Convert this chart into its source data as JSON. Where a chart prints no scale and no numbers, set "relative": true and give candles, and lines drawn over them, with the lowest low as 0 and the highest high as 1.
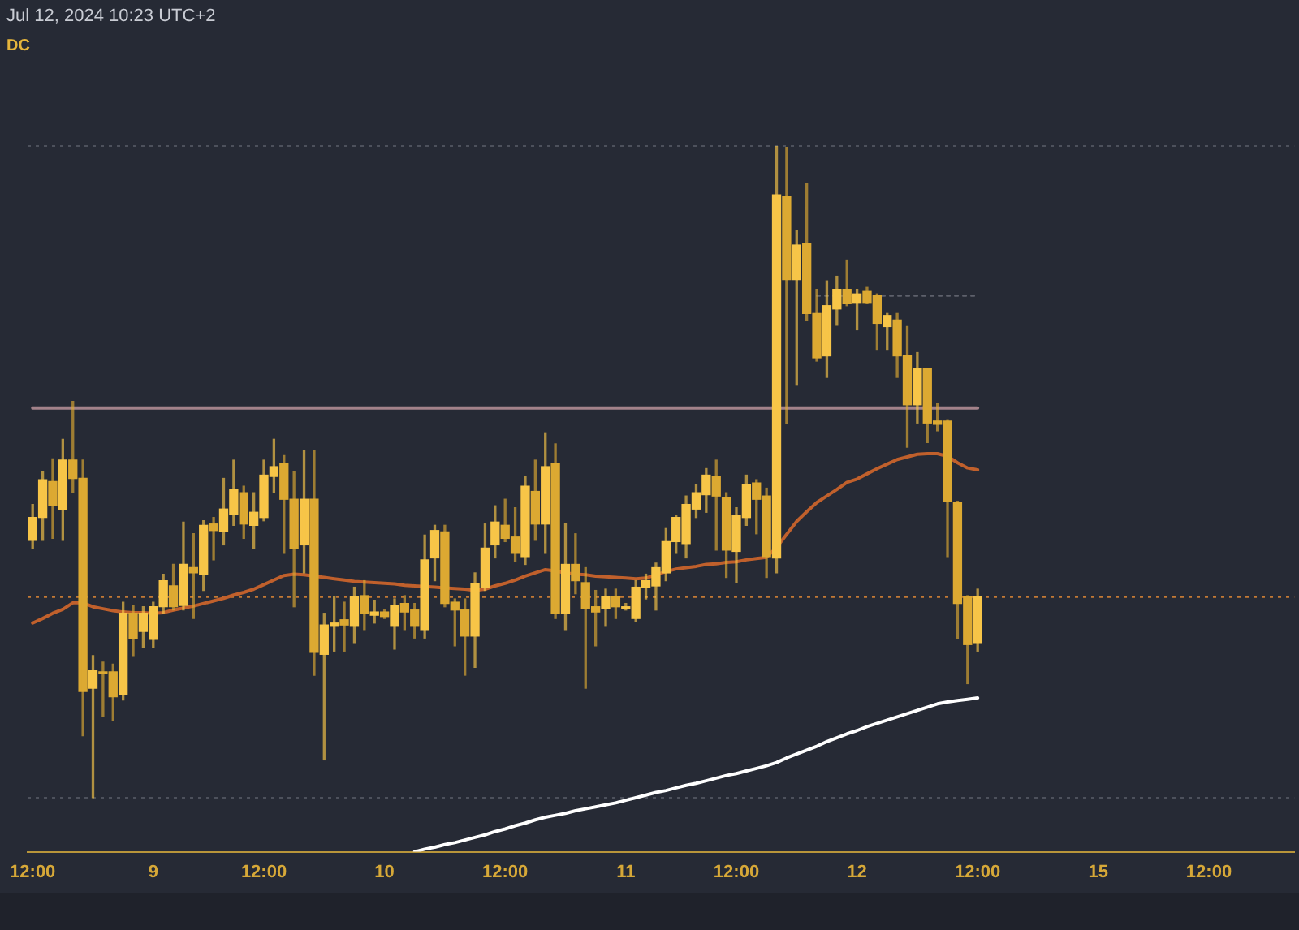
{
  "chart_data": {
    "type": "candlestick",
    "title": "DC",
    "annotations": [
      "Jul 12, 2024 10:23 UTC+2"
    ],
    "relative": true,
    "categories": [
      "12:00",
      null,
      null,
      null,
      null,
      null,
      null,
      null,
      null,
      null,
      null,
      null,
      "9",
      null,
      null,
      null,
      null,
      null,
      null,
      null,
      null,
      null,
      null,
      "12:00",
      null,
      null,
      null,
      null,
      null,
      null,
      null,
      null,
      null,
      null,
      null,
      "10",
      null,
      null,
      null,
      null,
      null,
      null,
      null,
      null,
      null,
      null,
      null,
      "12:00",
      null,
      null,
      null,
      null,
      null,
      null,
      null,
      null,
      null,
      null,
      null,
      "11",
      null,
      null,
      null,
      null,
      null,
      null,
      null,
      null,
      null,
      null,
      "12:00",
      null,
      null,
      null,
      null,
      null,
      null,
      null,
      null,
      null,
      null,
      null,
      "12",
      null,
      null,
      null,
      null,
      null,
      null,
      null,
      null,
      null,
      null,
      null,
      "12:00",
      null,
      null,
      null,
      null,
      null,
      null,
      null,
      null,
      null,
      null,
      null,
      "15",
      null,
      null,
      null,
      null,
      null,
      null,
      null,
      null,
      null,
      null,
      "12:00",
      null,
      null,
      null,
      null,
      null,
      null,
      null,
      null
    ],
    "series": [
      {
        "colors": [
          "#f7c548",
          "#f7c548",
          "#dca932",
          "#f7c548",
          "#dca932",
          "#dca932",
          "#f7c548",
          "#dca932",
          "#dca932",
          "#f7c548",
          "#dca932",
          "#f7c548",
          "#f7c548",
          "#f7c548",
          "#dca932",
          "#f7c548",
          "#dca932",
          "#f7c548",
          "#dca932",
          "#f7c548",
          "#f7c548",
          "#dca932",
          "#f7c548",
          "#f7c548",
          "#f7c548",
          "#dca932",
          "#dca932",
          "#f7c548",
          "#dca932",
          "#f7c548",
          "#f7c548",
          "#dca932",
          "#f7c548",
          "#dca932",
          "#f7c548",
          "#dca932",
          "#f7c548",
          "#dca932",
          "#dca932",
          "#f7c548",
          "#f7c548",
          "#dca932",
          "#dca932",
          "#dca932",
          "#f7c548",
          "#f7c548",
          "#f7c548",
          "#dca932",
          "#dca932",
          "#f7c548",
          "#dca932",
          "#f7c548",
          "#dca932",
          "#f7c548",
          "#dca932",
          "#dca932",
          "#dca932",
          "#f7c548",
          "#dca932",
          "#f7c548",
          "#f7c548",
          "#f7c548",
          "#f7c548",
          "#f7c548",
          "#f7c548",
          "#f7c548",
          "#f7c548",
          "#f7c548",
          "#dca932",
          "#dca932",
          "#f7c548",
          "#f7c548",
          "#dca932",
          "#dca932",
          "#f7c548",
          "#dca932",
          "#f7c548",
          "#dca932",
          "#dca932",
          "#f7c548",
          "#f7c548",
          "#dca932",
          "#f7c548",
          "#dca932",
          "#dca932",
          "#f7c548",
          "#dca932",
          "#dca932",
          "#f7c548",
          "#dca932",
          "#dca932",
          "#dca932",
          "#dca932",
          "#dca932",
          "#f7c548",
          null,
          null,
          null,
          null,
          null,
          null,
          null,
          null,
          null,
          null,
          null,
          null,
          null,
          null,
          null,
          null,
          null,
          null,
          null,
          null,
          null,
          null,
          null,
          null,
          null,
          null,
          null,
          null,
          null,
          null,
          null
        ],
        "ohlc": [
          [
            0.395,
            0.45,
            0.383,
            0.43
          ],
          [
            0.43,
            0.5,
            0.395,
            0.488
          ],
          [
            0.485,
            0.52,
            0.398,
            0.448
          ],
          [
            0.443,
            0.55,
            0.395,
            0.518
          ],
          [
            0.518,
            0.608,
            0.468,
            0.49
          ],
          [
            0.49,
            0.518,
            0.095,
            0.163
          ],
          [
            0.168,
            0.218,
            0,
            0.195
          ],
          [
            0.193,
            0.208,
            0.125,
            0.19
          ],
          [
            0.193,
            0.205,
            0.118,
            0.155
          ],
          [
            0.158,
            0.3,
            0.15,
            0.283
          ],
          [
            0.283,
            0.295,
            0.218,
            0.245
          ],
          [
            0.255,
            0.293,
            0.23,
            0.283
          ],
          [
            0.243,
            0.3,
            0.23,
            0.293
          ],
          [
            0.293,
            0.343,
            0.283,
            0.333
          ],
          [
            0.325,
            0.358,
            0.288,
            0.293
          ],
          [
            0.295,
            0.423,
            0.288,
            0.358
          ],
          [
            0.353,
            0.405,
            0.275,
            0.345
          ],
          [
            0.343,
            0.425,
            0.318,
            0.418
          ],
          [
            0.42,
            0.43,
            0.365,
            0.41
          ],
          [
            0.408,
            0.49,
            0.388,
            0.443
          ],
          [
            0.435,
            0.518,
            0.418,
            0.473
          ],
          [
            0.468,
            0.478,
            0.398,
            0.42
          ],
          [
            0.418,
            0.468,
            0.383,
            0.438
          ],
          [
            0.43,
            0.518,
            0.425,
            0.495
          ],
          [
            0.493,
            0.55,
            0.468,
            0.508
          ],
          [
            0.513,
            0.525,
            0.375,
            0.458
          ],
          [
            0.458,
            0.5,
            0.293,
            0.383
          ],
          [
            0.388,
            0.533,
            0.345,
            0.458
          ],
          [
            0.458,
            0.533,
            0.188,
            0.223
          ],
          [
            0.22,
            0.283,
            0.058,
            0.265
          ],
          [
            0.263,
            0.308,
            0.225,
            0.268
          ],
          [
            0.273,
            0.3,
            0.225,
            0.265
          ],
          [
            0.263,
            0.323,
            0.238,
            0.308
          ],
          [
            0.31,
            0.333,
            0.258,
            0.283
          ],
          [
            0.28,
            0.303,
            0.268,
            0.285
          ],
          [
            0.285,
            0.288,
            0.275,
            0.278
          ],
          [
            0.263,
            0.305,
            0.228,
            0.295
          ],
          [
            0.298,
            0.31,
            0.258,
            0.285
          ],
          [
            0.288,
            0.298,
            0.245,
            0.263
          ],
          [
            0.258,
            0.403,
            0.245,
            0.365
          ],
          [
            0.368,
            0.418,
            0.333,
            0.41
          ],
          [
            0.408,
            0.418,
            0.293,
            0.298
          ],
          [
            0.3,
            0.305,
            0.233,
            0.288
          ],
          [
            0.288,
            0.305,
            0.188,
            0.248
          ],
          [
            0.248,
            0.345,
            0.2,
            0.328
          ],
          [
            0.323,
            0.42,
            0.318,
            0.383
          ],
          [
            0.388,
            0.448,
            0.368,
            0.423
          ],
          [
            0.418,
            0.458,
            0.393,
            0.398
          ],
          [
            0.4,
            0.445,
            0.363,
            0.375
          ],
          [
            0.37,
            0.493,
            0.358,
            0.478
          ],
          [
            0.47,
            0.518,
            0.395,
            0.42
          ],
          [
            0.42,
            0.56,
            0.375,
            0.508
          ],
          [
            0.513,
            0.543,
            0.275,
            0.283
          ],
          [
            0.283,
            0.42,
            0.258,
            0.358
          ],
          [
            0.358,
            0.405,
            0.313,
            0.333
          ],
          [
            0.33,
            0.353,
            0.168,
            0.29
          ],
          [
            0.293,
            0.318,
            0.233,
            0.285
          ],
          [
            0.29,
            0.32,
            0.263,
            0.308
          ],
          [
            0.308,
            0.32,
            0.275,
            0.293
          ],
          [
            0.293,
            0.298,
            0.288,
            0.293
          ],
          [
            0.275,
            0.333,
            0.27,
            0.323
          ],
          [
            0.323,
            0.343,
            0.305,
            0.333
          ],
          [
            0.325,
            0.36,
            0.288,
            0.353
          ],
          [
            0.345,
            0.413,
            0.333,
            0.393
          ],
          [
            0.393,
            0.433,
            0.375,
            0.43
          ],
          [
            0.39,
            0.463,
            0.368,
            0.45
          ],
          [
            0.443,
            0.48,
            0.43,
            0.468
          ],
          [
            0.465,
            0.505,
            0.438,
            0.495
          ],
          [
            0.493,
            0.518,
            0.38,
            0.463
          ],
          [
            0.46,
            0.468,
            0.338,
            0.38
          ],
          [
            0.378,
            0.445,
            0.33,
            0.433
          ],
          [
            0.43,
            0.495,
            0.418,
            0.48
          ],
          [
            0.483,
            0.488,
            0.405,
            0.458
          ],
          [
            0.463,
            0.475,
            0.338,
            0.37
          ],
          [
            0.368,
            1,
            0.345,
            0.925
          ],
          [
            0.923,
            0.998,
            0.575,
            0.795
          ],
          [
            0.795,
            0.87,
            0.633,
            0.848
          ],
          [
            0.85,
            0.943,
            0.733,
            0.743
          ],
          [
            0.743,
            0.78,
            0.67,
            0.675
          ],
          [
            0.678,
            0.793,
            0.645,
            0.755
          ],
          [
            0.75,
            0.8,
            0.725,
            0.78
          ],
          [
            0.78,
            0.825,
            0.755,
            0.758
          ],
          [
            0.76,
            0.78,
            0.718,
            0.773
          ],
          [
            0.778,
            0.783,
            0.758,
            0.76
          ],
          [
            0.77,
            0.773,
            0.688,
            0.728
          ],
          [
            0.723,
            0.743,
            0.688,
            0.74
          ],
          [
            0.733,
            0.743,
            0.645,
            0.678
          ],
          [
            0.678,
            0.723,
            0.538,
            0.603
          ],
          [
            0.603,
            0.683,
            0.575,
            0.658
          ],
          [
            0.658,
            0.658,
            0.545,
            0.575
          ],
          [
            0.578,
            0.605,
            0.563,
            0.573
          ],
          [
            0.578,
            0.58,
            0.37,
            0.455
          ],
          [
            0.453,
            0.455,
            0.245,
            0.298
          ],
          [
            0.308,
            0.31,
            0.175,
            0.235
          ],
          [
            0.238,
            0.32,
            0.225,
            0.308
          ],
          null,
          null,
          null,
          null,
          null,
          null,
          null,
          null,
          null,
          null,
          null,
          null,
          null,
          null,
          null,
          null,
          null,
          null,
          null,
          null,
          null,
          null,
          null,
          null,
          null,
          null,
          null,
          null,
          null,
          null,
          null
        ]
      },
      {
        "type": "line",
        "color": "#c0602c",
        "values": [
          0.268,
          0.275,
          0.283,
          0.289,
          0.299,
          0.299,
          0.293,
          0.29,
          0.287,
          0.285,
          0.284,
          0.284,
          0.283,
          0.284,
          0.288,
          0.291,
          0.294,
          0.298,
          0.302,
          0.306,
          0.311,
          0.315,
          0.32,
          0.327,
          0.334,
          0.341,
          0.343,
          0.342,
          0.34,
          0.338,
          0.336,
          0.334,
          0.332,
          0.331,
          0.33,
          0.329,
          0.328,
          0.326,
          0.325,
          0.324,
          0.323,
          0.322,
          0.321,
          0.32,
          0.318,
          0.32,
          0.325,
          0.329,
          0.334,
          0.34,
          0.345,
          0.35,
          0.348,
          0.345,
          0.343,
          0.342,
          0.34,
          0.339,
          0.338,
          0.337,
          0.336,
          0.337,
          0.342,
          0.347,
          0.351,
          0.353,
          0.355,
          0.358,
          0.359,
          0.361,
          0.362,
          0.365,
          0.367,
          0.369,
          0.384,
          0.404,
          0.424,
          0.439,
          0.453,
          0.463,
          0.473,
          0.484,
          0.489,
          0.497,
          0.505,
          0.512,
          0.519,
          0.523,
          0.527,
          0.528,
          0.528,
          0.524,
          0.514,
          0.506,
          0.503,
          null,
          null,
          null,
          null,
          null,
          null,
          null,
          null,
          null,
          null,
          null,
          null,
          null,
          null,
          null,
          null,
          null,
          null,
          null,
          null,
          null,
          null,
          null,
          null,
          null,
          null,
          null,
          null,
          null,
          null,
          null
        ]
      },
      {
        "type": "line",
        "color": "#ffffff",
        "values": [
          null,
          null,
          null,
          null,
          null,
          null,
          null,
          null,
          null,
          null,
          null,
          null,
          null,
          null,
          null,
          null,
          null,
          null,
          null,
          null,
          null,
          null,
          null,
          null,
          null,
          null,
          null,
          null,
          null,
          null,
          null,
          null,
          null,
          null,
          null,
          null,
          null,
          null,
          -0.083,
          -0.079,
          -0.076,
          -0.072,
          -0.069,
          -0.065,
          -0.061,
          -0.057,
          -0.052,
          -0.048,
          -0.043,
          -0.039,
          -0.034,
          -0.03,
          -0.027,
          -0.024,
          -0.02,
          -0.017,
          -0.014,
          -0.011,
          -0.008,
          -0.004,
          0,
          0.004,
          0.008,
          0.011,
          0.015,
          0.019,
          0.022,
          0.026,
          0.03,
          0.034,
          0.037,
          0.041,
          0.045,
          0.049,
          0.054,
          0.061,
          0.067,
          0.073,
          0.079,
          0.086,
          0.092,
          0.098,
          0.103,
          0.109,
          0.114,
          0.119,
          0.124,
          0.129,
          0.134,
          0.139,
          0.144,
          0.147,
          0.149,
          0.151,
          0.153,
          null,
          null,
          null,
          null,
          null,
          null,
          null,
          null,
          null,
          null,
          null,
          null,
          null,
          null,
          null,
          null,
          null,
          null,
          null,
          null,
          null,
          null,
          null,
          null,
          null,
          null,
          null,
          null,
          null,
          null,
          null
        ]
      },
      {
        "type": "line",
        "color": "#a3828a",
        "values": [
          0.598,
          0.598,
          0.598,
          0.598,
          0.598,
          0.598,
          0.598,
          0.598,
          0.598,
          0.598,
          0.598,
          0.598,
          0.598,
          0.598,
          0.598,
          0.598,
          0.598,
          0.598,
          0.598,
          0.598,
          0.598,
          0.598,
          0.598,
          0.598,
          0.598,
          0.598,
          0.598,
          0.598,
          0.598,
          0.598,
          0.598,
          0.598,
          0.598,
          0.598,
          0.598,
          0.598,
          0.598,
          0.598,
          0.598,
          0.598,
          0.598,
          0.598,
          0.598,
          0.598,
          0.598,
          0.598,
          0.598,
          0.598,
          0.598,
          0.598,
          0.598,
          0.598,
          0.598,
          0.598,
          0.598,
          0.598,
          0.598,
          0.598,
          0.598,
          0.598,
          0.598,
          0.598,
          0.598,
          0.598,
          0.598,
          0.598,
          0.598,
          0.598,
          0.598,
          0.598,
          0.598,
          0.598,
          0.598,
          0.598,
          0.598,
          0.598,
          0.598,
          0.598,
          0.598,
          0.598,
          0.598,
          0.598,
          0.598,
          0.598,
          0.598,
          0.598,
          0.598,
          0.598,
          0.598,
          0.598,
          0.598,
          0.598,
          0.598,
          0.598,
          0.598,
          null,
          null,
          null,
          null,
          null,
          null,
          null,
          null,
          null,
          null,
          null,
          null,
          null,
          null,
          null,
          null,
          null,
          null,
          null,
          null,
          null,
          null,
          null,
          null,
          null,
          null,
          null,
          null,
          null,
          null,
          null
        ]
      },
      {
        "type": "line",
        "color": "#5d606b",
        "line_style": "dotted",
        "values": [
          null,
          null,
          null,
          null,
          null,
          null,
          null,
          null,
          null,
          null,
          null,
          null,
          null,
          null,
          null,
          null,
          null,
          null,
          null,
          null,
          null,
          null,
          null,
          null,
          null,
          null,
          null,
          null,
          null,
          null,
          null,
          null,
          null,
          null,
          null,
          null,
          null,
          null,
          null,
          null,
          null,
          null,
          null,
          null,
          null,
          null,
          null,
          null,
          null,
          null,
          null,
          null,
          null,
          null,
          null,
          null,
          null,
          null,
          null,
          null,
          null,
          null,
          null,
          null,
          null,
          null,
          null,
          null,
          null,
          null,
          null,
          null,
          null,
          null,
          null,
          null,
          null,
          null,
          0.77,
          0.77,
          0.77,
          0.77,
          0.77,
          0.77,
          0.77,
          0.77,
          0.77,
          0.77,
          0.77,
          0.77,
          0.77,
          0.77,
          0.77,
          0.77,
          0.77,
          null,
          null,
          null,
          null,
          null,
          null,
          null,
          null,
          null,
          null,
          null,
          null,
          null,
          null,
          null,
          null,
          null,
          null,
          null,
          null,
          null,
          null,
          null,
          null,
          null,
          null,
          null,
          null,
          null,
          null,
          null
        ]
      }
    ],
    "ref_lines": [
      {
        "axis": "y",
        "value": 1,
        "color": "#4d515c",
        "line_style": "dotted"
      },
      {
        "axis": "y",
        "value": 0.308,
        "color": "#c47a35",
        "line_style": "dotted"
      },
      {
        "axis": "y",
        "value": 0,
        "color": "#4d515c",
        "line_style": "dotted"
      }
    ]
  }
}
